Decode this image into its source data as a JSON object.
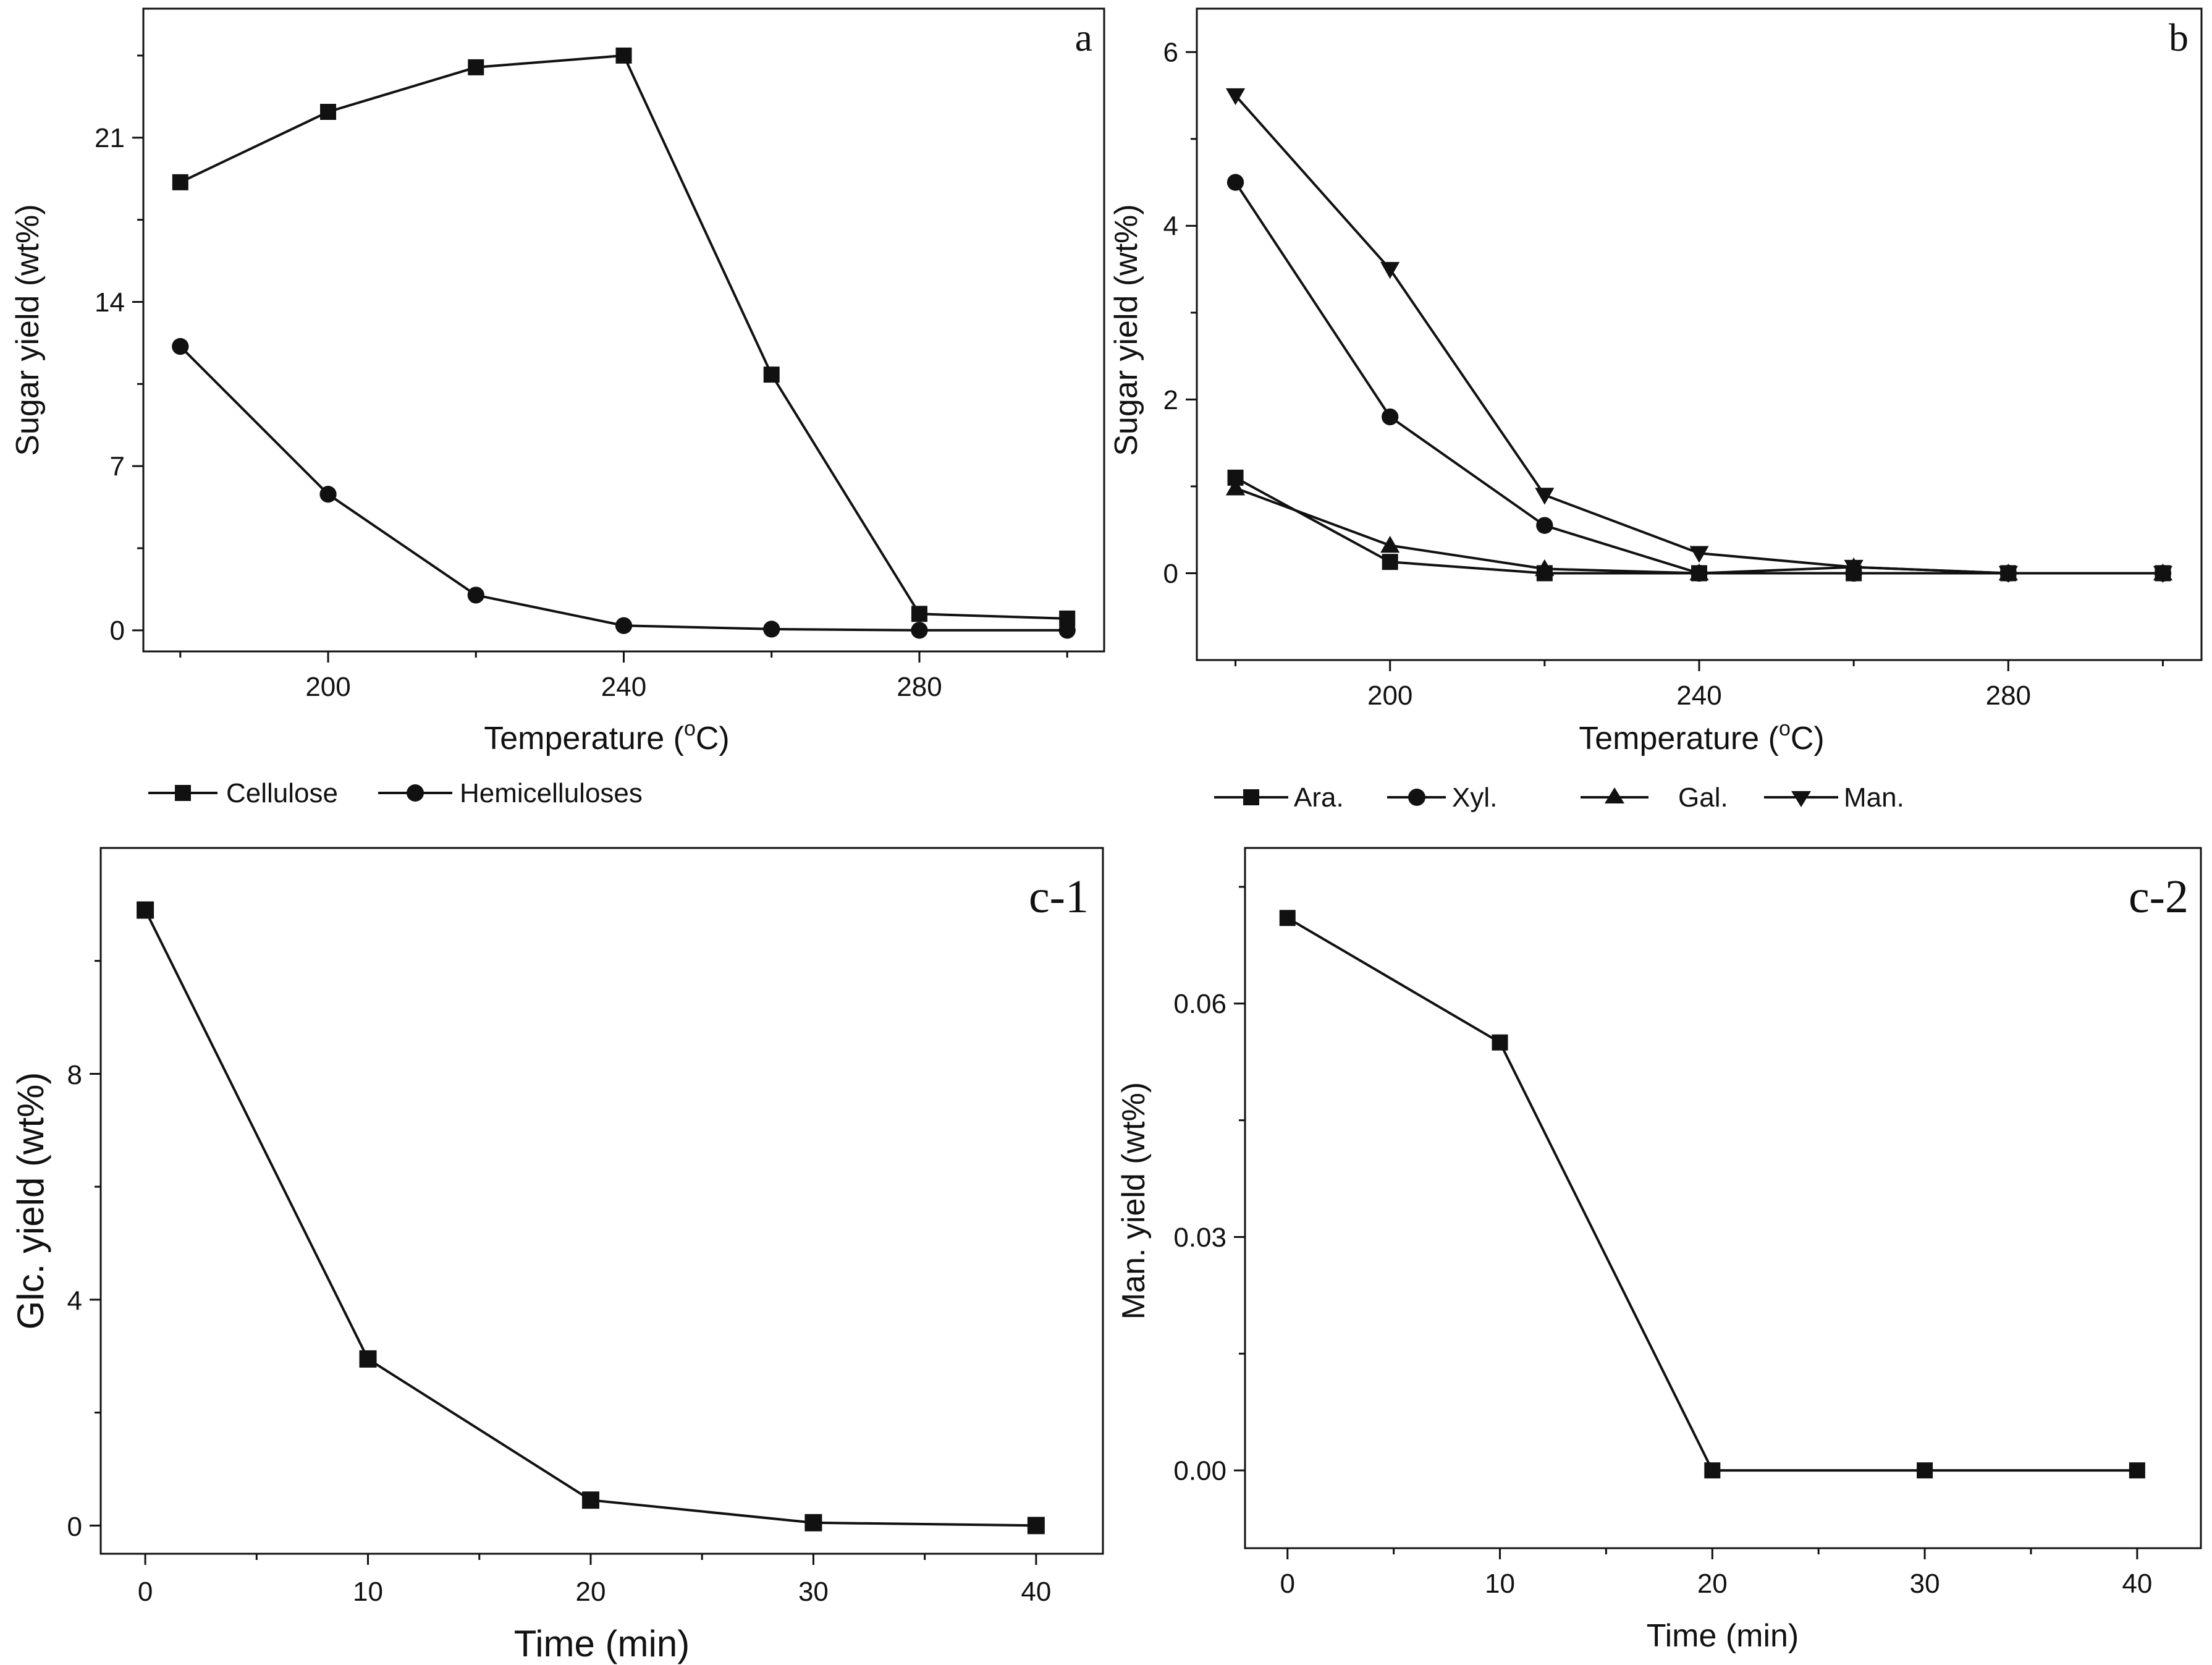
{
  "chart_data": [
    {
      "id": "a",
      "type": "line",
      "panel_label": "a",
      "xlabel": "Temperature (",
      "xlabel_sup": "o",
      "xlabel_unit": "C)",
      "ylabel": "Sugar yield (wt%)",
      "x": [
        180,
        200,
        220,
        240,
        260,
        280,
        300
      ],
      "xlim": [
        175,
        305
      ],
      "ylim": [
        -0.9,
        26.5
      ],
      "xticks": [
        200,
        240,
        280
      ],
      "xticks_minor": [
        180,
        220,
        260,
        300
      ],
      "yticks": [
        0,
        7,
        14,
        21
      ],
      "yticks_minor": [
        3.5,
        10.5,
        17.5,
        24.5
      ],
      "series": [
        {
          "name": "Cellulose",
          "marker": "square",
          "values": [
            19.1,
            22.1,
            24.0,
            24.5,
            10.9,
            0.7,
            0.5
          ]
        },
        {
          "name": "Hemicelluloses",
          "marker": "circle",
          "values": [
            12.1,
            5.8,
            1.5,
            0.2,
            0.05,
            0.0,
            0.0
          ]
        }
      ]
    },
    {
      "id": "b",
      "type": "line",
      "panel_label": "b",
      "xlabel": "Temperature (",
      "xlabel_sup": "o",
      "xlabel_unit": "C)",
      "ylabel": "Sugar yield (wt%)",
      "x": [
        180,
        200,
        220,
        240,
        260,
        280,
        300
      ],
      "xlim": [
        175,
        305
      ],
      "ylim": [
        -1.0,
        6.5
      ],
      "xticks": [
        200,
        240,
        280
      ],
      "xticks_minor": [
        180,
        220,
        260,
        300
      ],
      "yticks": [
        0,
        2,
        4,
        6
      ],
      "yticks_minor": [
        1,
        3,
        5
      ],
      "series": [
        {
          "name": "Ara.",
          "marker": "square",
          "values": [
            1.1,
            0.13,
            0.0,
            0.0,
            0.0,
            0.0,
            0.0
          ]
        },
        {
          "name": "Xyl.",
          "marker": "circle",
          "values": [
            4.5,
            1.8,
            0.55,
            0.0,
            0.0,
            0.0,
            0.0
          ]
        },
        {
          "name": "Gal.",
          "marker": "triangle-up",
          "values": [
            0.98,
            0.32,
            0.05,
            0.0,
            0.07,
            0.0,
            0.0
          ]
        },
        {
          "name": "Man.",
          "marker": "triangle-down",
          "values": [
            5.5,
            3.5,
            0.9,
            0.23,
            0.07,
            0.0,
            0.0
          ]
        }
      ]
    },
    {
      "id": "c-1",
      "type": "line",
      "panel_label": "c-1",
      "xlabel": "Time (min)",
      "ylabel": "Glc. yield (wt%)",
      "x": [
        0,
        10,
        20,
        30,
        40
      ],
      "xlim": [
        -2,
        43
      ],
      "ylim": [
        -0.5,
        12.0
      ],
      "xticks": [
        0,
        10,
        20,
        30,
        40
      ],
      "xticks_minor": [
        5,
        15,
        25,
        35
      ],
      "yticks": [
        0,
        4,
        8
      ],
      "yticks_minor": [
        2,
        6,
        10
      ],
      "series": [
        {
          "name": "Glc.",
          "marker": "square",
          "values": [
            10.9,
            2.95,
            0.45,
            0.05,
            0.0
          ]
        }
      ]
    },
    {
      "id": "c-2",
      "type": "line",
      "panel_label": "c-2",
      "xlabel": "Time (min)",
      "ylabel": "Man. yield (wt%)",
      "x": [
        0,
        10,
        20,
        30,
        40
      ],
      "xlim": [
        -2,
        43
      ],
      "ylim": [
        -0.01,
        0.08
      ],
      "xticks": [
        0,
        10,
        20,
        30,
        40
      ],
      "xticks_minor": [
        5,
        15,
        25,
        35
      ],
      "yticks": [
        0.0,
        0.03,
        0.06
      ],
      "ytick_labels": [
        "0.00",
        "0.03",
        "0.06"
      ],
      "yticks_minor": [
        0.015,
        0.045,
        0.075
      ],
      "series": [
        {
          "name": "Man.",
          "marker": "square",
          "values": [
            0.071,
            0.055,
            0.0,
            0.0,
            0.0
          ]
        }
      ]
    }
  ]
}
